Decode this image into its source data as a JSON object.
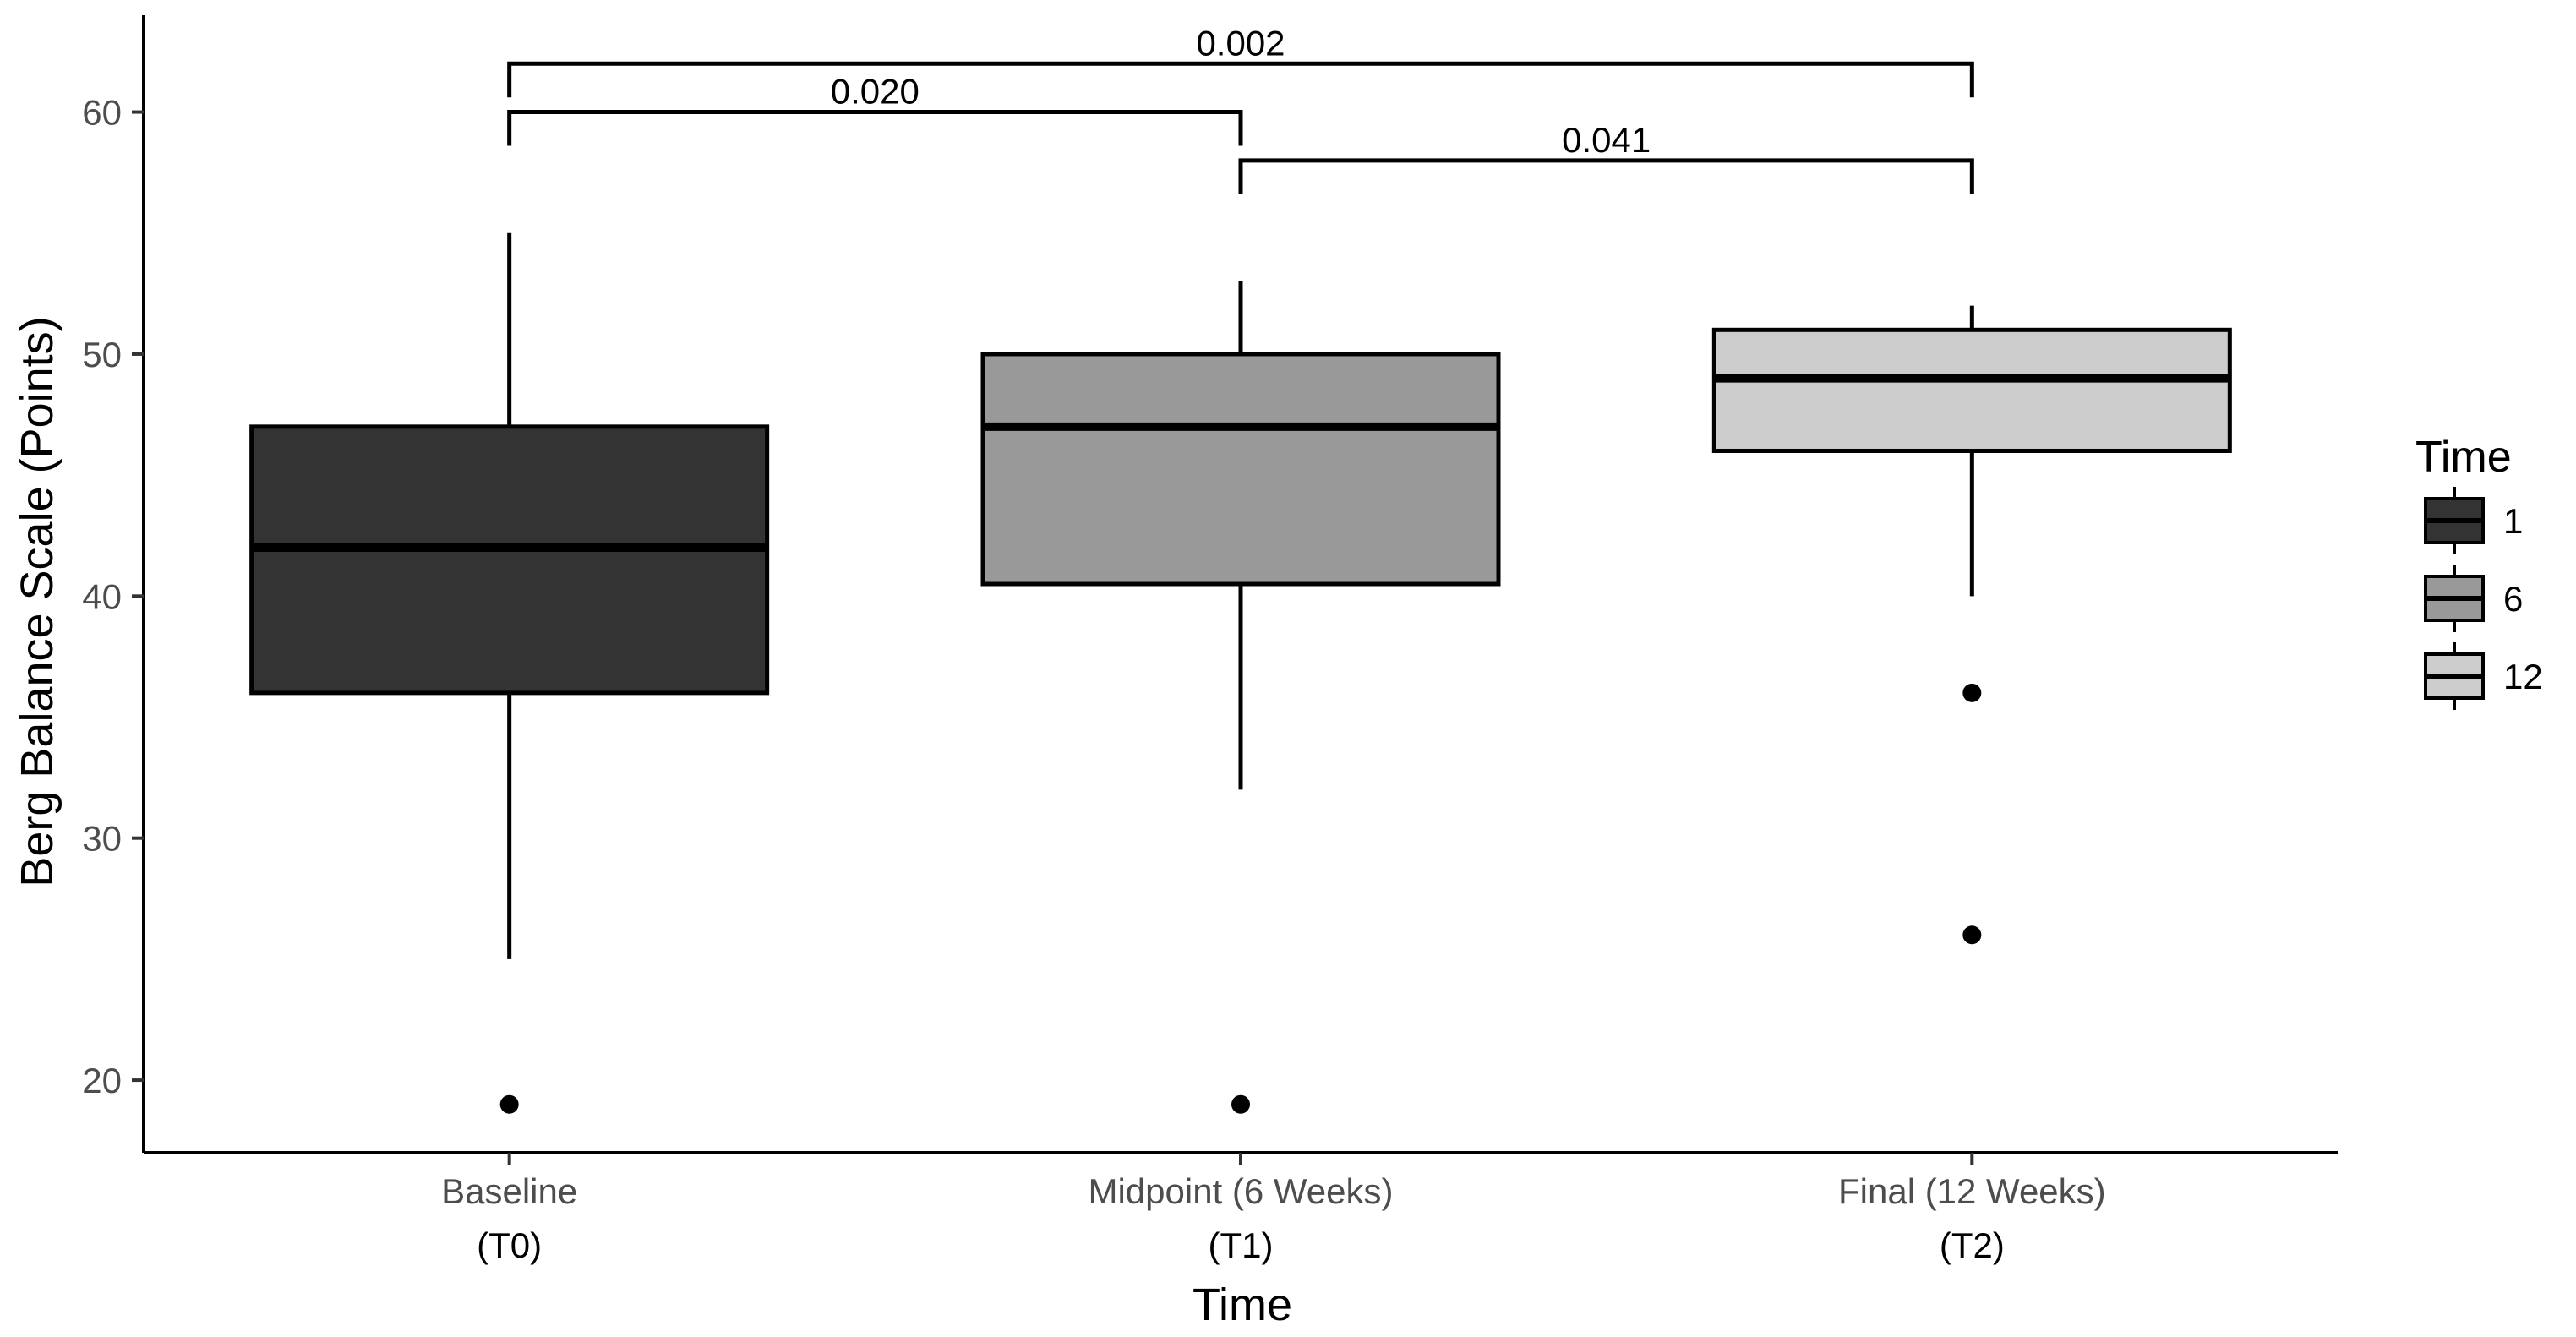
{
  "chart_data": {
    "type": "box",
    "xlabel": "Time",
    "ylabel": "Berg Balance Scale  (Points)",
    "ylim": [
      17,
      64
    ],
    "y_ticks": [
      20,
      30,
      40,
      50,
      60
    ],
    "grid": false,
    "categories": [
      {
        "label": "Baseline",
        "sub_label": "(T0)"
      },
      {
        "label": "Midpoint (6 Weeks)",
        "sub_label": "(T1)"
      },
      {
        "label": "Final (12 Weeks)",
        "sub_label": "(T2)"
      }
    ],
    "series": [
      {
        "name": "1",
        "fill": "#333333",
        "whisker_low": 25,
        "q1": 36,
        "median": 42,
        "q3": 47,
        "whisker_high": 55,
        "outliers": [
          19
        ]
      },
      {
        "name": "6",
        "fill": "#999999",
        "whisker_low": 32,
        "q1": 40.5,
        "median": 47,
        "q3": 50,
        "whisker_high": 53,
        "outliers": [
          19
        ]
      },
      {
        "name": "12",
        "fill": "#cccccc",
        "whisker_low": 40,
        "q1": 46,
        "median": 49,
        "q3": 51,
        "whisker_high": 52,
        "outliers": [
          36,
          26
        ]
      }
    ],
    "comparisons": [
      {
        "from": 0,
        "to": 2,
        "y": 62,
        "label": "0.002"
      },
      {
        "from": 0,
        "to": 1,
        "y": 60,
        "label": "0.020"
      },
      {
        "from": 1,
        "to": 2,
        "y": 58,
        "label": "0.041"
      }
    ],
    "legend": {
      "title": "Time",
      "position": "right"
    }
  }
}
